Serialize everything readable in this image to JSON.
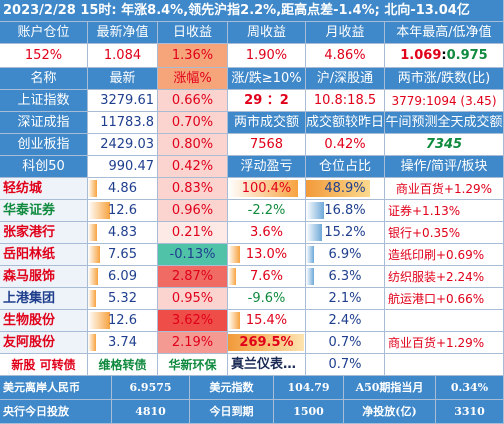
{
  "header": {
    "title": "2023/2/28  15时: 年涨8.4%,领先沪指2.2%,距高点差-1.4%; 北向-13.04亿"
  },
  "summary": {
    "headers": [
      "账户仓位",
      "最新净值",
      "日收益",
      "周收益",
      "月收益",
      "本年最高/低净值"
    ],
    "values": {
      "position": "152%",
      "nav": "1.084",
      "daily": "1.36%",
      "weekly": "1.90%",
      "monthly": "4.86%",
      "year_high": "1.069",
      "year_sep": ": ",
      "year_low": "0.975"
    }
  },
  "index_table": {
    "headers": [
      "名称",
      "最新",
      "涨幅%",
      "涨/跌≥10%",
      "沪/深股通",
      "两市涨/跌数(比)"
    ],
    "rows": [
      {
        "name": "上证指数",
        "price": "3279.61",
        "change": "0.66%",
        "c4": "29 ：2",
        "c5": "10.8:18.5",
        "c6": "3779:1094 (3.45)"
      },
      {
        "name": "深证成指",
        "price": "11783.8",
        "change": "0.70%",
        "c4": "两市成交额",
        "c5": "成交额较昨日",
        "c6": "午间预测全天成交额"
      },
      {
        "name": "创业板指",
        "price": "2429.03",
        "change": "0.80%",
        "c4": "7568",
        "c5": "0.42%",
        "c6": "7345"
      },
      {
        "name": "科创50",
        "price": "990.47",
        "change": "0.42%",
        "c4": "浮动盈亏",
        "c5": "仓位占比",
        "c6": "操作/简评/板块"
      }
    ]
  },
  "holdings": [
    {
      "name": "轻纺城",
      "price": "4.86",
      "change": "0.83%",
      "pnl": "100.4%",
      "weight": "48.9%",
      "note": "商业百货+1.29%"
    },
    {
      "name": "华泰证券",
      "price": "12.6",
      "change": "0.96%",
      "pnl": "-2.2%",
      "weight": "16.8%",
      "note": "证券+1.13%"
    },
    {
      "name": "张家港行",
      "price": "4.83",
      "change": "0.21%",
      "pnl": "3.6%",
      "weight": "15.2%",
      "note": "银行+0.35%"
    },
    {
      "name": "岳阳林纸",
      "price": "7.65",
      "change": "-0.13%",
      "pnl": "13.0%",
      "weight": "6.9%",
      "note": "造纸印刷+0.69%"
    },
    {
      "name": "森马服饰",
      "price": "6.09",
      "change": "2.87%",
      "pnl": "7.6%",
      "weight": "6.3%",
      "note": "纺织服装+2.24%"
    },
    {
      "name": "上港集团",
      "price": "5.32",
      "change": "0.95%",
      "pnl": "-9.6%",
      "weight": "2.1%",
      "note": "航运港口+0.66%"
    },
    {
      "name": "生物股份",
      "price": "12.6",
      "change": "3.62%",
      "pnl": "15.4%",
      "weight": "2.4%",
      "note": ""
    },
    {
      "name": "友阿股份",
      "price": "3.74",
      "change": "2.19%",
      "pnl": "269.5%",
      "weight": "0.7%",
      "note": "商业百货+1.29%"
    }
  ],
  "bonds_row": {
    "label": "新股 可转债",
    "b1": "维格转债",
    "b2": "华新环保",
    "b3": "真兰仪表…",
    "weight": "0.7%"
  },
  "footer": {
    "row1": [
      "美元离岸人民币",
      "6.9575",
      "美元指数",
      "104.79",
      "A50期指当月",
      "0.34%"
    ],
    "row2": [
      "央行今日投放",
      "4810",
      "今日到期",
      "1500",
      "净投放(亿)",
      "3310"
    ]
  },
  "colors": {
    "header_blue": "#3f88c9",
    "up_red": "#e0001a",
    "down_green": "#0f8a3e",
    "text_blue": "#1f3f8e",
    "heat_strong": "#ef4d47",
    "heat_mid": "#f49a93",
    "heat_light": "#fbd4cf",
    "heat_green": "#4fc2a8"
  }
}
